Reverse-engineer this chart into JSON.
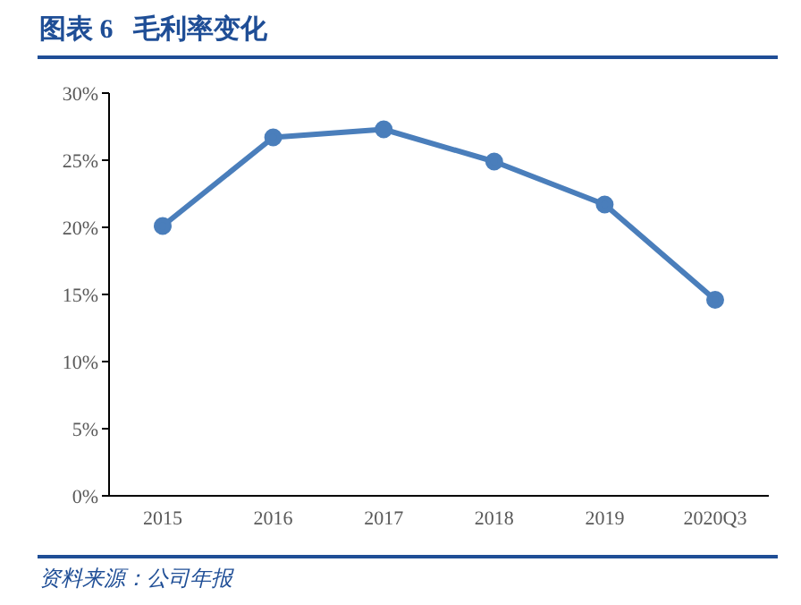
{
  "chart_data": {
    "type": "line",
    "title": "图表 6   毛利率变化",
    "annotations": [
      "资料来源：公司年报"
    ],
    "categories": [
      "2015",
      "2016",
      "2017",
      "2018",
      "2019",
      "2020Q3"
    ],
    "series": [
      {
        "color": "#4a7ebb",
        "values": [
          20.1,
          26.7,
          27.3,
          24.9,
          21.7,
          14.6
        ]
      }
    ],
    "ylim": [
      0,
      30
    ],
    "yticks": [
      {
        "value": 0,
        "label": "0%"
      },
      {
        "value": 5,
        "label": "5%"
      },
      {
        "value": 10,
        "label": "10%"
      },
      {
        "value": 15,
        "label": "15%"
      },
      {
        "value": 20,
        "label": "20%"
      },
      {
        "value": 25,
        "label": "25%"
      },
      {
        "value": 30,
        "label": "30%"
      }
    ],
    "grid": false,
    "legend": false,
    "marker": "circle",
    "line_style": "solid"
  }
}
